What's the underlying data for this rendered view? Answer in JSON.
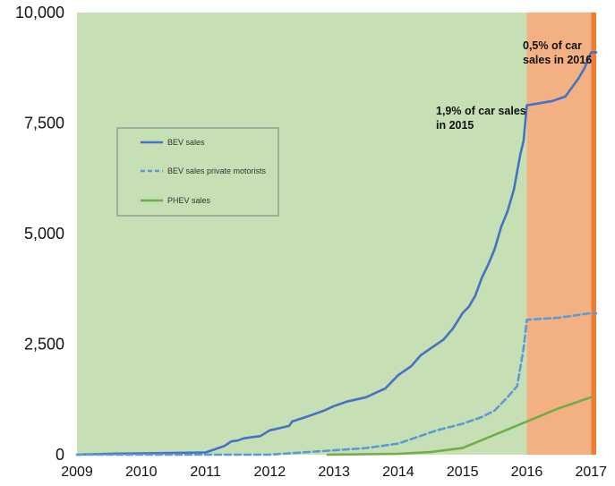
{
  "chart_data": {
    "type": "line",
    "title": "",
    "xlabel": "",
    "ylabel": "",
    "ylim": [
      0,
      10000
    ],
    "xlim": [
      2009.0,
      2017.1
    ],
    "y_ticks": [
      "0",
      "2,500",
      "5,000",
      "7,500",
      "10,000"
    ],
    "x_ticks": [
      "2009",
      "2010",
      "2011",
      "2012",
      "2013",
      "2014",
      "2015",
      "2016",
      "2017"
    ],
    "grid": false,
    "legend_position": "upper-left",
    "background_regions": [
      {
        "from": 2009.0,
        "to": 2016.0,
        "color": "#c6dfb4"
      },
      {
        "from": 2016.0,
        "to": 2017.0,
        "color": "#f3b183"
      },
      {
        "from": 2017.0,
        "to": 2017.08,
        "color": "#ee7d33"
      }
    ],
    "series": [
      {
        "name": "BEV sales",
        "color": "#4472c4",
        "style": "solid",
        "x": [
          2009.0,
          2009.5,
          2010.0,
          2010.5,
          2011.0,
          2011.1,
          2011.3,
          2011.4,
          2011.5,
          2011.6,
          2011.75,
          2011.85,
          2012.0,
          2012.15,
          2012.3,
          2012.35,
          2012.6,
          2012.85,
          2013.0,
          2013.2,
          2013.5,
          2013.65,
          2013.8,
          2013.9,
          2014.0,
          2014.2,
          2014.35,
          2014.5,
          2014.7,
          2014.85,
          2015.0,
          2015.1,
          2015.2,
          2015.3,
          2015.4,
          2015.5,
          2015.6,
          2015.7,
          2015.8,
          2015.9,
          2015.95,
          2016.0,
          2016.2,
          2016.4,
          2016.6,
          2016.7,
          2016.8,
          2016.9,
          2017.0,
          2017.08
        ],
        "y": [
          0,
          20,
          30,
          40,
          50,
          100,
          200,
          300,
          320,
          370,
          400,
          420,
          550,
          600,
          650,
          750,
          870,
          1000,
          1100,
          1200,
          1300,
          1400,
          1500,
          1650,
          1800,
          2000,
          2250,
          2400,
          2600,
          2850,
          3200,
          3350,
          3600,
          4000,
          4300,
          4650,
          5150,
          5500,
          6000,
          6800,
          7100,
          7900,
          7950,
          8000,
          8100,
          8300,
          8500,
          8750,
          9100,
          9100
        ]
      },
      {
        "name": "BEV sales private motorists",
        "color": "#5b9bd5",
        "style": "dashed",
        "x": [
          2009.0,
          2011.0,
          2012.0,
          2012.5,
          2013.0,
          2013.5,
          2014.0,
          2014.3,
          2014.6,
          2015.0,
          2015.3,
          2015.5,
          2015.7,
          2015.85,
          2015.95,
          2016.0,
          2016.5,
          2017.0,
          2017.08
        ],
        "y": [
          0,
          0,
          0,
          50,
          100,
          150,
          250,
          400,
          550,
          700,
          850,
          1000,
          1300,
          1550,
          2400,
          3050,
          3100,
          3200,
          3200
        ]
      },
      {
        "name": "PHEV sales",
        "color": "#70ad47",
        "style": "solid",
        "x": [
          2012.9,
          2013.5,
          2014.0,
          2014.5,
          2015.0,
          2015.5,
          2016.0,
          2016.5,
          2017.0
        ],
        "y": [
          0,
          10,
          20,
          60,
          150,
          450,
          750,
          1050,
          1300
        ]
      }
    ],
    "annotations": [
      {
        "lines": [
          "1,9% of car sales",
          "in 2015"
        ],
        "color": "#111111"
      },
      {
        "lines": [
          "0,5% of car",
          "sales in 2016"
        ],
        "color": "#111111"
      }
    ]
  }
}
